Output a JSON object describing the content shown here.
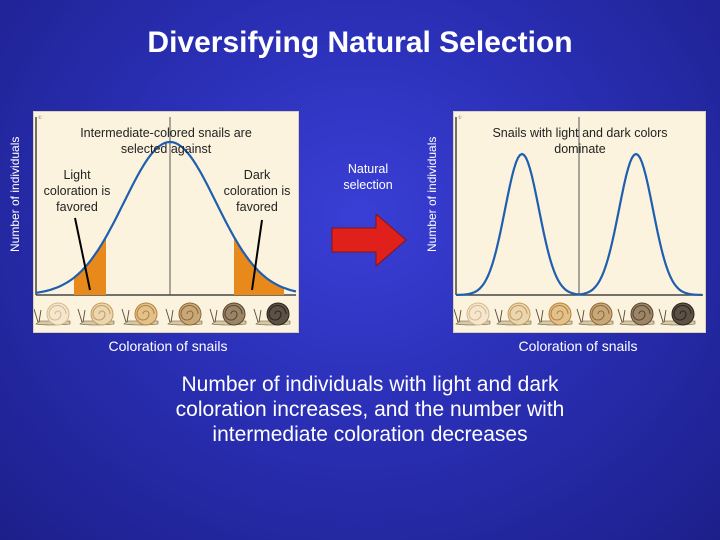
{
  "title": "Diversifying Natural Selection",
  "left_panel": {
    "y_axis_label": "Number of individuals",
    "x_axis_label": "Coloration of snails",
    "top_note": "Intermediate-colored snails are selected against",
    "left_note": "Light coloration is favored",
    "right_note": "Dark coloration is favored"
  },
  "arrow_label": "Natural selection",
  "right_panel": {
    "y_axis_label": "Number of individuals",
    "x_axis_label": "Coloration of snails",
    "top_note": "Snails with light and dark colors dominate"
  },
  "caption": "Number of individuals with light and dark coloration increases, and the number with intermediate coloration decreases",
  "colors": {
    "curve": "#1f5fb0",
    "favored_fill": "#e8891c",
    "arrow_fill": "#e0201a",
    "panel_bg": "#fbf3de"
  },
  "snails": [
    "light",
    "light-tan",
    "tan",
    "medium",
    "brown",
    "dark"
  ]
}
